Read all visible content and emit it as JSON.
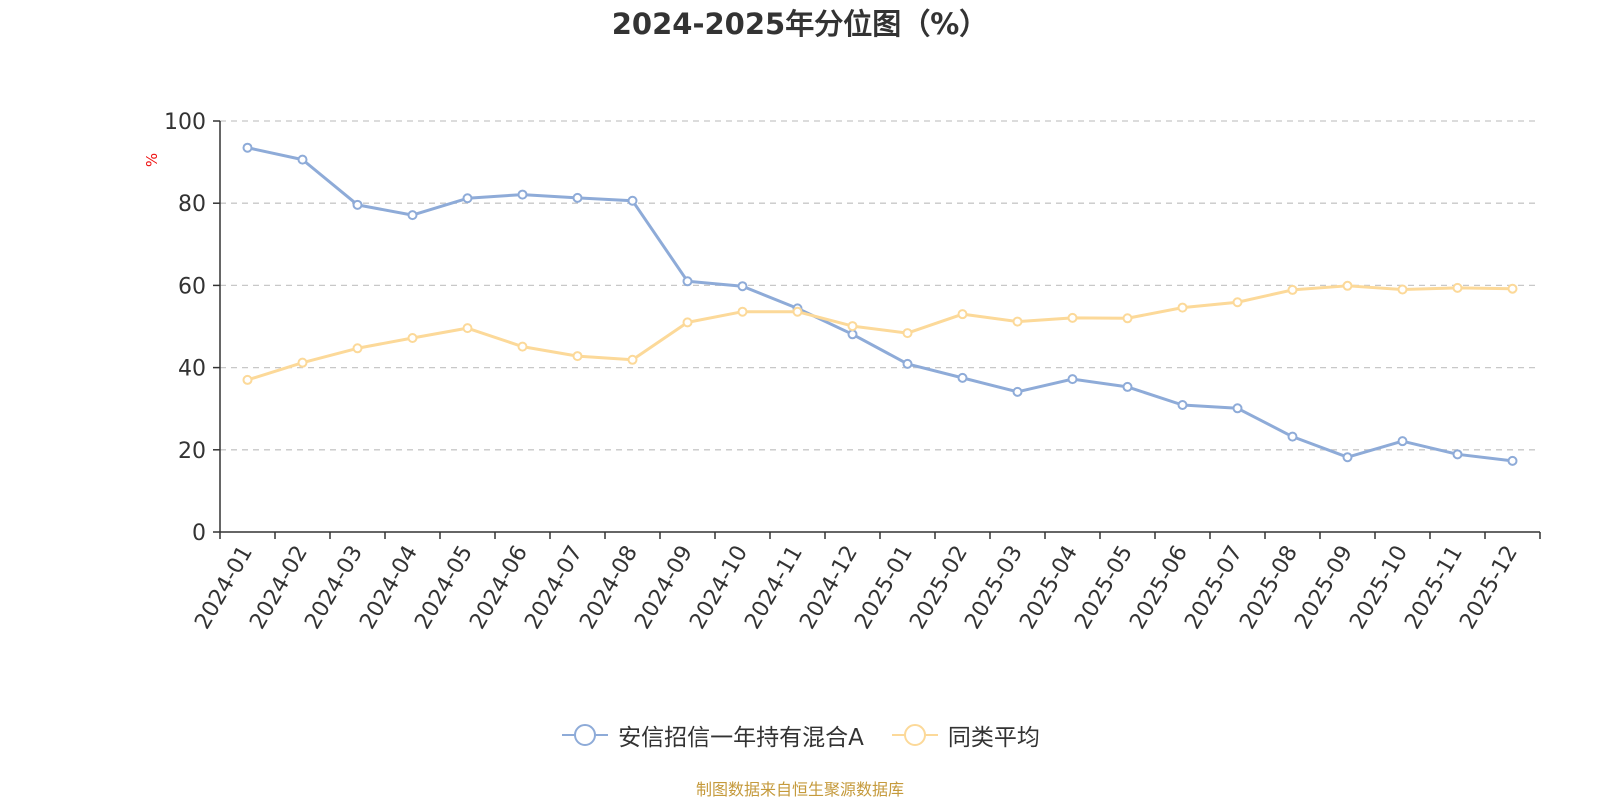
{
  "chart_data": {
    "type": "line",
    "title": "2024-2025年分位图（%）",
    "ylabel": "%",
    "xlabel": "",
    "ylim": [
      0,
      100
    ],
    "yticks": [
      0,
      20,
      40,
      60,
      80,
      100
    ],
    "grid": true,
    "legend_position": "bottom",
    "categories": [
      "2024-01",
      "2024-02",
      "2024-03",
      "2024-04",
      "2024-05",
      "2024-06",
      "2024-07",
      "2024-08",
      "2024-09",
      "2024-10",
      "2024-11",
      "2024-12",
      "2025-01",
      "2025-02",
      "2025-03",
      "2025-04",
      "2025-05",
      "2025-06",
      "2025-07",
      "2025-08",
      "2025-09",
      "2025-10",
      "2025-11",
      "2025-12"
    ],
    "series": [
      {
        "name": "安信招信一年持有混合A",
        "color": "#8eabd8",
        "values": [
          93.5,
          90.6,
          79.6,
          77.1,
          81.2,
          82.1,
          81.3,
          80.6,
          61.0,
          59.8,
          54.4,
          48.1,
          40.9,
          37.5,
          34.1,
          37.2,
          35.3,
          30.9,
          30.1,
          23.2,
          18.2,
          22.1,
          18.9,
          17.3
        ]
      },
      {
        "name": "同类平均",
        "color": "#fcd999",
        "values": [
          37.0,
          41.2,
          44.7,
          47.2,
          49.6,
          45.1,
          42.8,
          41.9,
          51.0,
          53.6,
          53.6,
          50.1,
          48.4,
          53.0,
          51.2,
          52.1,
          52.0,
          54.6,
          55.9,
          58.9,
          59.9,
          59.0,
          59.4,
          59.2
        ]
      }
    ]
  },
  "source_note": "制图数据来自恒生聚源数据库"
}
